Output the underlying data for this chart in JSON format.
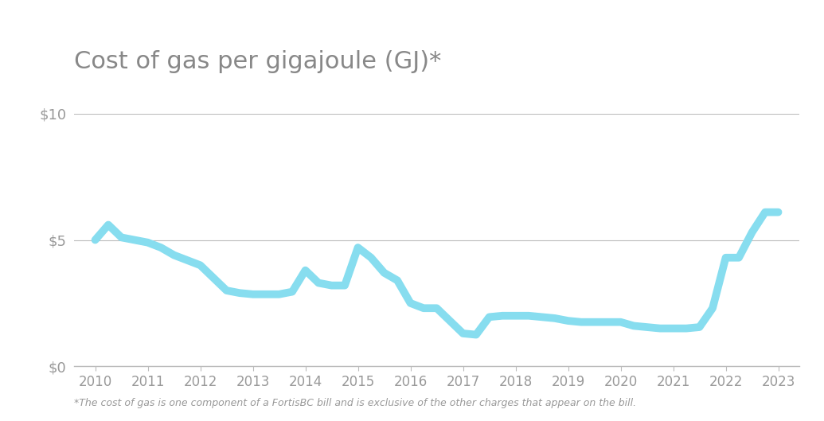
{
  "title": "Cost of gas per gigajoule (GJ)*",
  "footnote": "*The cost of gas is one component of a FortisBC bill and is exclusive of the other charges that appear on the bill.",
  "line_color": "#87DDEF",
  "line_width": 7,
  "background_color": "#ffffff",
  "grid_color": "#bbbbbb",
  "title_color": "#888888",
  "axis_color": "#bbbbbb",
  "tick_label_color": "#999999",
  "ylim": [
    0,
    10
  ],
  "yticks": [
    0,
    5,
    10
  ],
  "ytick_labels": [
    "$0",
    "$5",
    "$10"
  ],
  "xlim_start": 2009.6,
  "xlim_end": 2023.4,
  "xtick_positions": [
    2010,
    2011,
    2012,
    2013,
    2014,
    2015,
    2016,
    2017,
    2018,
    2019,
    2020,
    2021,
    2022,
    2023
  ],
  "xtick_labels": [
    "2010",
    "2011",
    "2012",
    "2013",
    "2014",
    "2015",
    "2016",
    "2017",
    "2018",
    "2019",
    "2020",
    "2021",
    "2022",
    "2023"
  ],
  "x": [
    2010.0,
    2010.25,
    2010.5,
    2010.75,
    2011.0,
    2011.25,
    2011.5,
    2011.75,
    2012.0,
    2012.25,
    2012.5,
    2012.75,
    2013.0,
    2013.25,
    2013.5,
    2013.75,
    2014.0,
    2014.25,
    2014.5,
    2014.75,
    2015.0,
    2015.25,
    2015.5,
    2015.75,
    2016.0,
    2016.25,
    2016.5,
    2016.75,
    2017.0,
    2017.25,
    2017.5,
    2017.75,
    2018.0,
    2018.25,
    2018.5,
    2018.75,
    2019.0,
    2019.25,
    2019.5,
    2019.75,
    2020.0,
    2020.25,
    2020.5,
    2020.75,
    2021.0,
    2021.25,
    2021.5,
    2021.75,
    2022.0,
    2022.25,
    2022.5,
    2022.75,
    2023.0
  ],
  "y": [
    5.0,
    5.6,
    5.1,
    5.0,
    4.9,
    4.7,
    4.4,
    4.2,
    4.0,
    3.5,
    3.0,
    2.9,
    2.85,
    2.85,
    2.85,
    2.95,
    3.8,
    3.3,
    3.2,
    3.2,
    4.7,
    4.3,
    3.7,
    3.4,
    2.5,
    2.3,
    2.3,
    1.8,
    1.3,
    1.25,
    1.95,
    2.0,
    2.0,
    2.0,
    1.95,
    1.9,
    1.8,
    1.75,
    1.75,
    1.75,
    1.75,
    1.6,
    1.55,
    1.5,
    1.5,
    1.5,
    1.55,
    2.3,
    4.3,
    4.3,
    5.3,
    6.1,
    6.1
  ]
}
